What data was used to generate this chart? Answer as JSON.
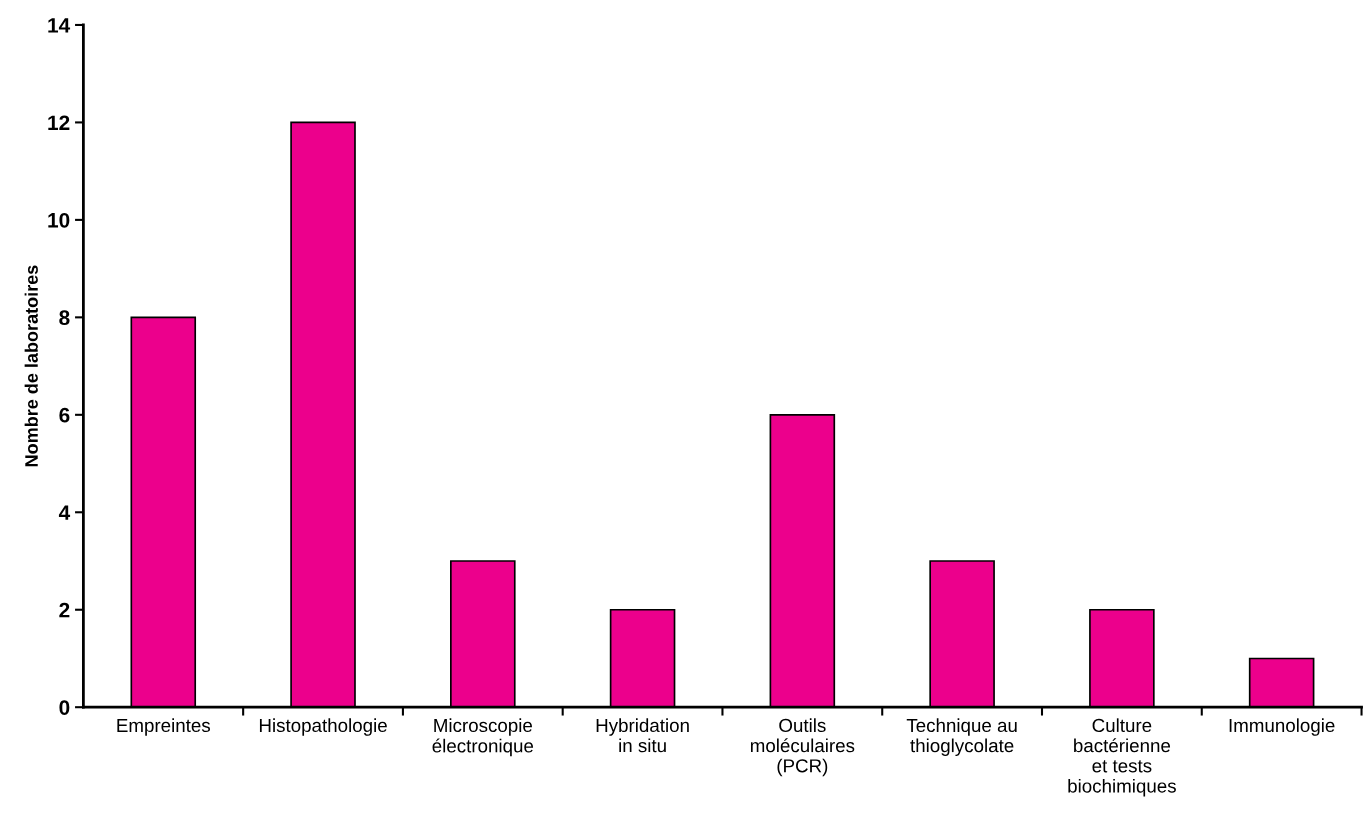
{
  "chart_data": {
    "type": "bar",
    "ylabel": "Nombre de laboratoires",
    "categories": [
      "Empreintes",
      "Histopathologie",
      "Microscopie\nélectronique",
      "Hybridation\nin situ",
      "Outils\nmoléculaires\n(PCR)",
      "Technique au\nthioglycolate",
      "Culture\nbactérienne\net tests\nbiochimiques",
      "Immunologie"
    ],
    "values": [
      8,
      12,
      3,
      2,
      6,
      3,
      2,
      1
    ],
    "color": "#ec008c",
    "ylim": [
      0,
      14
    ],
    "yticks": [
      0,
      2,
      4,
      6,
      8,
      10,
      12,
      14
    ],
    "grid": false
  }
}
